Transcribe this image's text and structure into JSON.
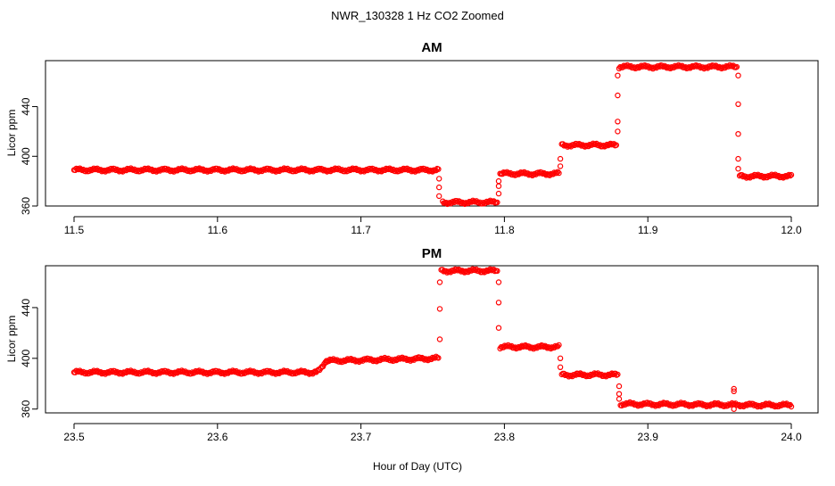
{
  "figure": {
    "title": "NWR_130328  1 Hz CO2 Zoomed",
    "xlabel": "Hour of Day (UTC)"
  },
  "colors": {
    "points": "#ff0000",
    "axes": "#000000",
    "background": "#ffffff"
  },
  "chart_data": [
    {
      "type": "scatter",
      "title": "AM",
      "ylabel": "Licor ppm",
      "xlim": [
        11.5,
        12.0
      ],
      "ylim": [
        360,
        477
      ],
      "xticks": [
        11.5,
        11.6,
        11.7,
        11.8,
        11.9,
        12.0
      ],
      "xtick_labels": [
        "11.5",
        "11.6",
        "11.7",
        "11.8",
        "11.9",
        "12.0"
      ],
      "yticks": [
        360,
        400,
        440
      ],
      "ytick_labels": [
        "360",
        "400",
        "440"
      ],
      "segments": [
        {
          "x_start": 11.5,
          "x_end": 11.754,
          "y": 389
        },
        {
          "x_start": 11.757,
          "x_end": 11.795,
          "y": 363
        },
        {
          "x_start": 11.797,
          "x_end": 11.838,
          "y": 386
        },
        {
          "x_start": 11.84,
          "x_end": 11.878,
          "y": 409
        },
        {
          "x_start": 11.88,
          "x_end": 11.962,
          "y": 472
        },
        {
          "x_start": 11.964,
          "x_end": 12.0,
          "y": 384
        }
      ],
      "transitions": [
        {
          "x": 11.7545,
          "y": [
            382,
            375,
            368
          ]
        },
        {
          "x": 11.796,
          "y": [
            370,
            376,
            380
          ]
        },
        {
          "x": 11.839,
          "y": [
            392,
            398
          ]
        },
        {
          "x": 11.879,
          "y": [
            420,
            428,
            449,
            465
          ]
        },
        {
          "x": 11.963,
          "y": [
            465,
            442,
            418,
            398,
            390
          ]
        }
      ]
    },
    {
      "type": "scatter",
      "title": "PM",
      "ylabel": "Licor ppm",
      "xlim": [
        23.5,
        24.0
      ],
      "ylim": [
        357,
        473
      ],
      "xticks": [
        23.5,
        23.6,
        23.7,
        23.8,
        23.9,
        24.0
      ],
      "xtick_labels": [
        "23.5",
        "23.6",
        "23.7",
        "23.8",
        "23.9",
        "24.0"
      ],
      "yticks": [
        360,
        400,
        440
      ],
      "ytick_labels": [
        "360",
        "400",
        "440"
      ],
      "segments": [
        {
          "x_start": 23.5,
          "x_end": 23.668,
          "y": 389,
          "y_end": 389
        },
        {
          "x_start": 23.668,
          "x_end": 23.676,
          "y": 389,
          "y_end": 397
        },
        {
          "x_start": 23.676,
          "x_end": 23.754,
          "y": 398,
          "y_end": 400
        },
        {
          "x_start": 23.756,
          "x_end": 23.795,
          "y": 469,
          "y_end": 469
        },
        {
          "x_start": 23.797,
          "x_end": 23.838,
          "y": 409,
          "y_end": 409
        },
        {
          "x_start": 23.84,
          "x_end": 23.879,
          "y": 387,
          "y_end": 387
        },
        {
          "x_start": 23.881,
          "x_end": 24.0,
          "y": 364,
          "y_end": 363
        }
      ],
      "transitions": [
        {
          "x": 23.755,
          "y": [
            415,
            439,
            460
          ]
        },
        {
          "x": 23.796,
          "y": [
            460,
            444,
            424
          ]
        },
        {
          "x": 23.839,
          "y": [
            400,
            393
          ]
        },
        {
          "x": 23.88,
          "y": [
            378,
            372,
            368
          ]
        },
        {
          "x": 23.96,
          "y": [
            360,
            374,
            376
          ]
        }
      ]
    }
  ]
}
